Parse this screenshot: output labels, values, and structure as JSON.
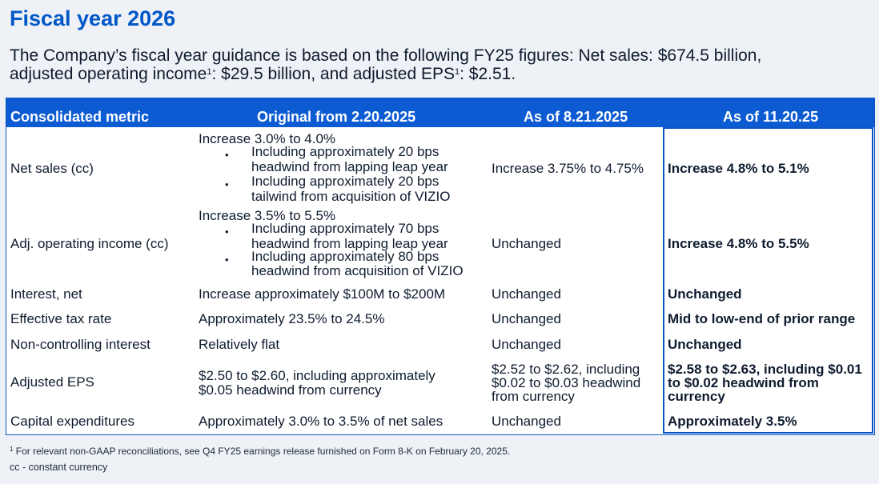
{
  "title": "Fiscal year 2026",
  "intro": {
    "line1": "The Company’s fiscal year guidance is based on the following FY25 figures: Net sales: $674.5 billion,",
    "line2_a": "adjusted operating income",
    "sup1": "1",
    "line2_b": ": $29.5 billion, and adjusted EPS",
    "sup2": "1",
    "line2_c": ": $2.51."
  },
  "table": {
    "headers": [
      "Consolidated metric",
      "Original from 2.20.2025",
      "As of 8.21.2025",
      "As of 11.20.25"
    ],
    "rows": [
      {
        "metric": "Net sales (cc)",
        "original": {
          "main": "Increase 3.0% to 4.0%",
          "bullets": [
            [
              "Including approximately 20 bps",
              "headwind from lapping leap year"
            ],
            [
              "Including approximately 20 bps",
              "tailwind from acquisition of VIZIO"
            ]
          ]
        },
        "aug": [
          "Increase 3.75% to 4.75%"
        ],
        "nov": [
          "Increase 4.8% to 5.1%"
        ]
      },
      {
        "metric": "Adj. operating income (cc)",
        "original": {
          "main": "Increase 3.5% to 5.5%",
          "bullets": [
            [
              "Including approximately 70 bps",
              "headwind from lapping leap year"
            ],
            [
              "Including approximately 80 bps",
              "headwind from acquisition of VIZIO"
            ]
          ]
        },
        "aug": [
          "Unchanged"
        ],
        "nov": [
          "Increase 4.8% to 5.5%"
        ]
      },
      {
        "metric": "Interest, net",
        "original": {
          "lines": [
            "Increase approximately $100M to $200M"
          ]
        },
        "aug": [
          "Unchanged"
        ],
        "nov": [
          "Unchanged"
        ]
      },
      {
        "metric": "Effective tax rate",
        "original": {
          "lines": [
            "Approximately 23.5% to 24.5%"
          ]
        },
        "aug": [
          "Unchanged"
        ],
        "nov": [
          "Mid to low-end of prior range"
        ]
      },
      {
        "metric": "Non-controlling interest",
        "original": {
          "lines": [
            "Relatively flat"
          ]
        },
        "aug": [
          "Unchanged"
        ],
        "nov": [
          "Unchanged"
        ]
      },
      {
        "metric": "Adjusted EPS",
        "original": {
          "lines": [
            "$2.50 to $2.60, including approximately",
            "$0.05 headwind from currency"
          ]
        },
        "aug": [
          "$2.52 to $2.62, including",
          "$0.02 to $0.03 headwind",
          "from currency"
        ],
        "nov": [
          "$2.58 to $2.63, including $0.01",
          "to $0.02 headwind from",
          "currency"
        ]
      },
      {
        "metric": "Capital expenditures",
        "original": {
          "lines": [
            "Approximately 3.0% to 3.5% of net sales"
          ]
        },
        "aug": [
          "Unchanged"
        ],
        "nov": [
          "Approximately 3.5%"
        ]
      }
    ]
  },
  "footnote": {
    "sup": "1",
    "text": " For relevant non-GAAP reconciliations, see Q4 FY25 earnings release furnished on Form 8-K on February 20, 2025.",
    "cc": "cc - constant currency"
  },
  "colors": {
    "accent": "#0057c8",
    "header_bg": "#0d5bd2",
    "page_bg": "#eef1f5"
  }
}
